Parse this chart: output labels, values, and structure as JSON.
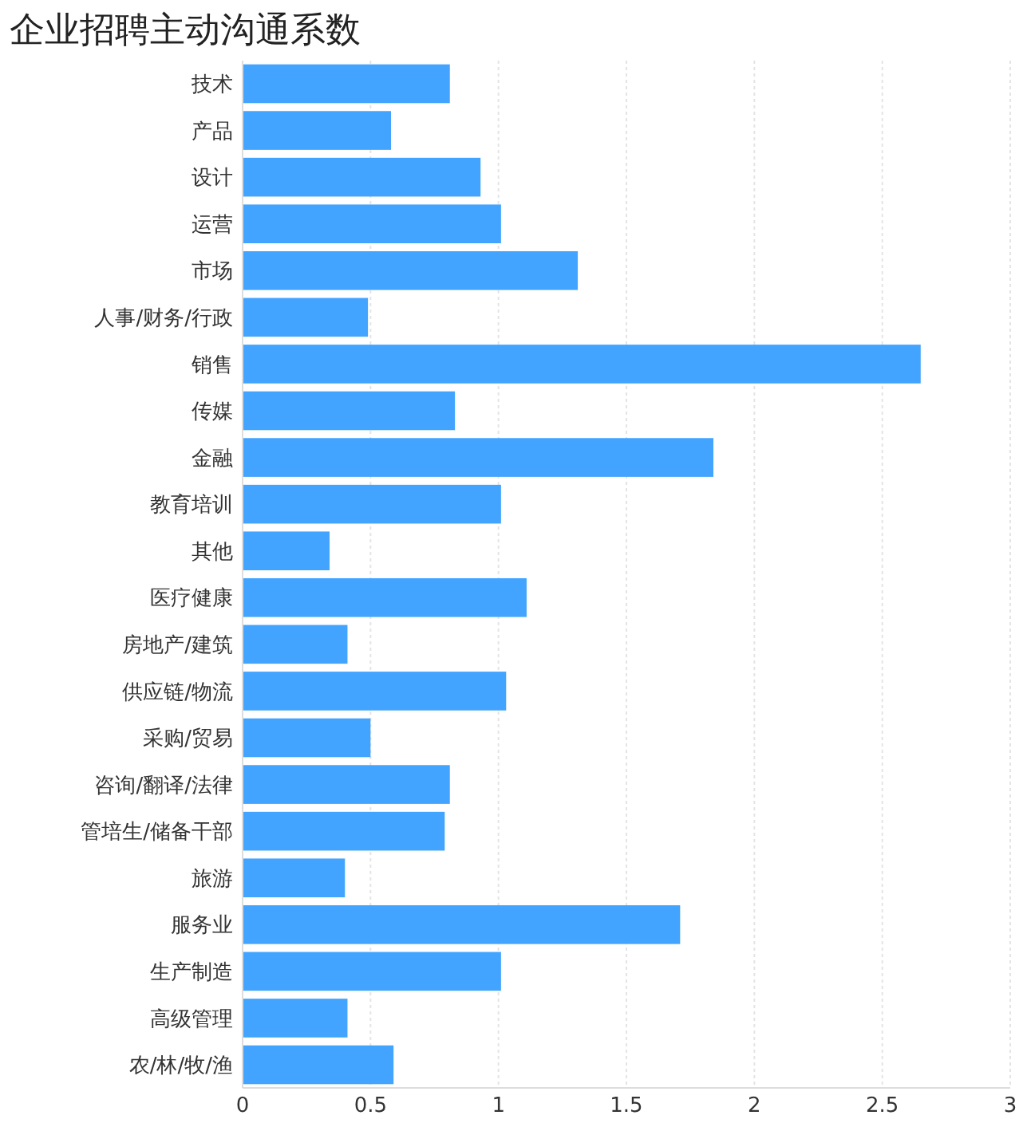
{
  "chart_data": {
    "type": "bar",
    "orientation": "horizontal",
    "title": "企业招聘主动沟通系数",
    "categories": [
      "技术",
      "产品",
      "设计",
      "运营",
      "市场",
      "人事/财务/行政",
      "销售",
      "传媒",
      "金融",
      "教育培训",
      "其他",
      "医疗健康",
      "房地产/建筑",
      "供应链/物流",
      "采购/贸易",
      "咨询/翻译/法律",
      "管培生/储备干部",
      "旅游",
      "服务业",
      "生产制造",
      "高级管理",
      "农/林/牧/渔"
    ],
    "values": [
      0.81,
      0.58,
      0.93,
      1.01,
      1.31,
      0.49,
      2.65,
      0.83,
      1.84,
      1.01,
      0.34,
      1.11,
      0.41,
      1.03,
      0.5,
      0.81,
      0.79,
      0.4,
      1.71,
      1.01,
      0.41,
      0.59
    ],
    "color": "#42a4ff",
    "xlim": [
      0,
      3
    ],
    "xticks": [
      0,
      0.5,
      1,
      1.5,
      2,
      2.5,
      3
    ],
    "grid": "x"
  }
}
